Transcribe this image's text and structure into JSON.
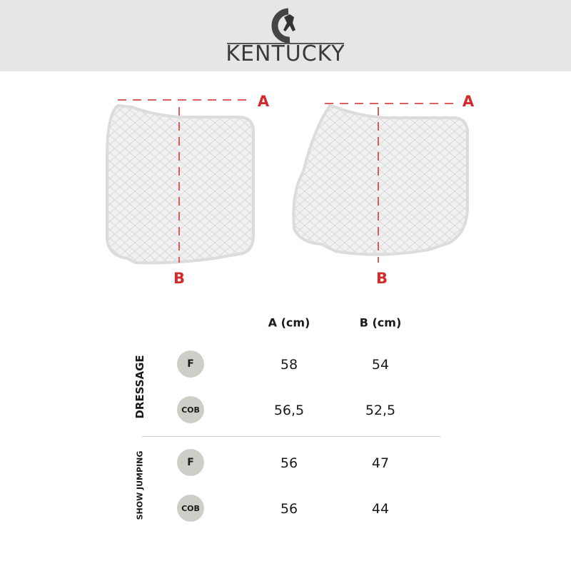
{
  "brand": {
    "name": "KENTUCKY",
    "logo_icon": "horse-rider-c-logo"
  },
  "diagram": {
    "measure_a": "A",
    "measure_b": "B",
    "accent_color": "#d42a2a"
  },
  "table": {
    "headers": [
      "A (cm)",
      "B (cm)"
    ],
    "groups": [
      {
        "name": "DRESSAGE",
        "rows": [
          {
            "size": "F",
            "a": "58",
            "b": "54"
          },
          {
            "size": "COB",
            "a": "56,5",
            "b": "52,5"
          }
        ]
      },
      {
        "name": "SHOW JUMPING",
        "rows": [
          {
            "size": "F",
            "a": "56",
            "b": "47"
          },
          {
            "size": "COB",
            "a": "56",
            "b": "44"
          }
        ]
      }
    ]
  }
}
